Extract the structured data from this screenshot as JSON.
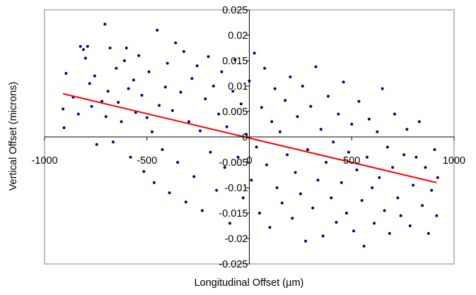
{
  "chart_data": {
    "type": "scatter",
    "title": "",
    "xlabel": "Longitudinal Offset (µm)",
    "ylabel": "Vertical Offset (microns)",
    "xlim": [
      -1000,
      1000
    ],
    "ylim": [
      -0.025,
      0.025
    ],
    "x_ticks": [
      -1000,
      -500,
      0,
      500,
      1000
    ],
    "x_tick_labels": [
      "-1000",
      "-500",
      "0",
      "500",
      "1000"
    ],
    "y_ticks": [
      -0.025,
      -0.02,
      -0.015,
      -0.01,
      -0.005,
      0,
      0.005,
      0.01,
      0.015,
      0.02,
      0.025
    ],
    "y_tick_labels": [
      "-0.025",
      "-0.02",
      "-0.015",
      "-0.01",
      "-0.005",
      "0",
      "0.005",
      "0.01",
      "0.015",
      "0.02",
      "0.025"
    ],
    "grid": false,
    "legend": "none",
    "colors": {
      "points": "#00008b",
      "trend": "#ff0000",
      "axes": "#000000",
      "frame": "#808080"
    },
    "series": [
      {
        "type": "scatter",
        "points": [
          [
            -910,
            0.0055
          ],
          [
            -905,
            0.0018
          ],
          [
            -895,
            0.0125
          ],
          [
            -860,
            0.0078
          ],
          [
            -835,
            0.0045
          ],
          [
            -825,
            0.0178
          ],
          [
            -810,
            0.0172
          ],
          [
            -800,
            0.0155
          ],
          [
            -790,
            0.0178
          ],
          [
            -780,
            0.0105
          ],
          [
            -770,
            0.006
          ],
          [
            -755,
            0.012
          ],
          [
            -745,
            -0.0015
          ],
          [
            -720,
            0.007
          ],
          [
            -705,
            0.0222
          ],
          [
            -700,
            0.004
          ],
          [
            -690,
            0.009
          ],
          [
            -680,
            0.0175
          ],
          [
            -665,
            -0.001
          ],
          [
            -650,
            0.0135
          ],
          [
            -640,
            0.0068
          ],
          [
            -625,
            0.003
          ],
          [
            -610,
            0.015
          ],
          [
            -600,
            0.0175
          ],
          [
            -590,
            0.0095
          ],
          [
            -580,
            -0.004
          ],
          [
            -565,
            0.0112
          ],
          [
            -555,
            0.0048
          ],
          [
            -540,
            0.016
          ],
          [
            -525,
            0.0082
          ],
          [
            -515,
            -0.0068
          ],
          [
            -500,
            0.0038
          ],
          [
            -490,
            0.0128
          ],
          [
            -475,
            0.001
          ],
          [
            -465,
            -0.009
          ],
          [
            -450,
            0.021
          ],
          [
            -440,
            0.0062
          ],
          [
            -425,
            -0.0025
          ],
          [
            -410,
            0.0098
          ],
          [
            -400,
            0.0145
          ],
          [
            -390,
            -0.011
          ],
          [
            -375,
            0.0052
          ],
          [
            -360,
            0.0185
          ],
          [
            -350,
            -0.005
          ],
          [
            -335,
            0.0088
          ],
          [
            -320,
            0.0168
          ],
          [
            -310,
            -0.0128
          ],
          [
            -295,
            0.003
          ],
          [
            -280,
            0.0115
          ],
          [
            -270,
            -0.0078
          ],
          [
            -255,
            0.014
          ],
          [
            -240,
            0.0012
          ],
          [
            -230,
            -0.0145
          ],
          [
            -215,
            0.0075
          ],
          [
            -200,
            0.0158
          ],
          [
            -190,
            -0.003
          ],
          [
            -175,
            0.01
          ],
          [
            -160,
            -0.0105
          ],
          [
            -150,
            0.0045
          ],
          [
            -135,
            0.0128
          ],
          [
            -120,
            -0.006
          ],
          [
            -110,
            0.002
          ],
          [
            -95,
            -0.017
          ],
          [
            -80,
            0.009
          ],
          [
            -70,
            0.0152
          ],
          [
            -55,
            -0.004
          ],
          [
            -40,
            0.0065
          ],
          [
            -30,
            -0.012
          ],
          [
            -15,
            0.0005
          ],
          [
            0,
            0.011
          ],
          [
            10,
            -0.0085
          ],
          [
            25,
            0.0165
          ],
          [
            35,
            -0.002
          ],
          [
            50,
            -0.015
          ],
          [
            60,
            0.0058
          ],
          [
            75,
            0.0135
          ],
          [
            85,
            -0.0055
          ],
          [
            100,
            -0.0178
          ],
          [
            110,
            0.003
          ],
          [
            125,
            0.0095
          ],
          [
            135,
            -0.01
          ],
          [
            150,
            0.001
          ],
          [
            160,
            -0.013
          ],
          [
            175,
            0.0072
          ],
          [
            185,
            -0.0035
          ],
          [
            200,
            0.0118
          ],
          [
            210,
            -0.016
          ],
          [
            225,
            -0.007
          ],
          [
            235,
            0.004
          ],
          [
            250,
            -0.0112
          ],
          [
            260,
            0.01
          ],
          [
            275,
            -0.0205
          ],
          [
            285,
            -0.0025
          ],
          [
            300,
            0.006
          ],
          [
            310,
            -0.014
          ],
          [
            325,
            0.0138
          ],
          [
            335,
            -0.0085
          ],
          [
            350,
            0.0015
          ],
          [
            360,
            -0.0195
          ],
          [
            375,
            -0.005
          ],
          [
            385,
            0.008
          ],
          [
            400,
            -0.012
          ],
          [
            410,
            -0.001
          ],
          [
            425,
            -0.0168
          ],
          [
            435,
            0.0045
          ],
          [
            450,
            -0.009
          ],
          [
            460,
            0.0108
          ],
          [
            475,
            -0.015
          ],
          [
            485,
            -0.003
          ],
          [
            500,
            0.0025
          ],
          [
            510,
            -0.0185
          ],
          [
            525,
            -0.0065
          ],
          [
            535,
            0.007
          ],
          [
            550,
            -0.0125
          ],
          [
            560,
            -0.0215
          ],
          [
            575,
            -0.004
          ],
          [
            585,
            0.0035
          ],
          [
            600,
            -0.01
          ],
          [
            610,
            -0.017
          ],
          [
            625,
            0.001
          ],
          [
            635,
            -0.008
          ],
          [
            650,
            0.0095
          ],
          [
            660,
            -0.0145
          ],
          [
            675,
            -0.002
          ],
          [
            685,
            -0.019
          ],
          [
            700,
            -0.006
          ],
          [
            710,
            0.0045
          ],
          [
            725,
            -0.012
          ],
          [
            740,
            -0.0155
          ],
          [
            755,
            -0.0035
          ],
          [
            770,
            0.0015
          ],
          [
            785,
            -0.0175
          ],
          [
            800,
            -0.0095
          ],
          [
            815,
            -0.004
          ],
          [
            830,
            0.003
          ],
          [
            845,
            -0.0135
          ],
          [
            860,
            -0.006
          ],
          [
            875,
            -0.019
          ],
          [
            890,
            -0.0105
          ],
          [
            905,
            -0.0025
          ],
          [
            915,
            -0.0155
          ],
          [
            920,
            -0.008
          ]
        ]
      },
      {
        "type": "line",
        "points": [
          [
            -910,
            0.0085
          ],
          [
            915,
            -0.009
          ]
        ]
      }
    ]
  }
}
